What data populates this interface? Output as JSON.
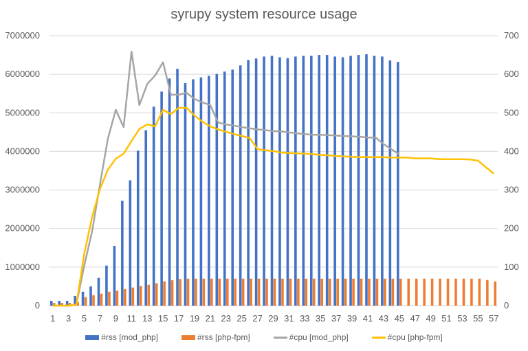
{
  "chart_data": {
    "type": "bar+line",
    "title": "syrupy system resource usage",
    "xlabel": "",
    "ylabel_left": "",
    "ylabel_right": "",
    "ylim_left": [
      0,
      7000000
    ],
    "ylim_right": [
      0,
      700
    ],
    "y_ticks_left": [
      "0",
      "1000000",
      "2000000",
      "3000000",
      "4000000",
      "5000000",
      "6000000",
      "7000000"
    ],
    "y_ticks_right": [
      "0",
      "100",
      "200",
      "300",
      "400",
      "500",
      "600",
      "700"
    ],
    "x_tick_labels": [
      "1",
      "3",
      "5",
      "7",
      "9",
      "11",
      "13",
      "15",
      "17",
      "19",
      "21",
      "23",
      "25",
      "27",
      "29",
      "31",
      "33",
      "35",
      "37",
      "39",
      "41",
      "43",
      "45",
      "47",
      "49",
      "51",
      "53",
      "55",
      "57"
    ],
    "grid": true,
    "legend_position": "bottom",
    "x": [
      1,
      2,
      3,
      4,
      5,
      6,
      7,
      8,
      9,
      10,
      11,
      12,
      13,
      14,
      15,
      16,
      17,
      18,
      19,
      20,
      21,
      22,
      23,
      24,
      25,
      26,
      27,
      28,
      29,
      30,
      31,
      32,
      33,
      34,
      35,
      36,
      37,
      38,
      39,
      40,
      41,
      42,
      43,
      44,
      45,
      46,
      47,
      48,
      49,
      50,
      51,
      52,
      53,
      54,
      55,
      56,
      57
    ],
    "series": [
      {
        "name": "#rss [mod_php]",
        "type": "bar",
        "axis": "left",
        "color": "#4472C4",
        "values": [
          125000,
          125000,
          125000,
          250000,
          360000,
          500000,
          720000,
          1040000,
          1550000,
          2720000,
          3250000,
          4020000,
          4550000,
          5160000,
          5550000,
          5890000,
          6140000,
          5770000,
          5870000,
          5920000,
          5960000,
          6010000,
          6070000,
          6120000,
          6230000,
          6370000,
          6410000,
          6460000,
          6480000,
          6440000,
          6420000,
          6460000,
          6480000,
          6480000,
          6500000,
          6500000,
          6460000,
          6440000,
          6480000,
          6500000,
          6520000,
          6480000,
          6460000,
          6360000,
          6320000,
          null,
          null,
          null,
          null,
          null,
          null,
          null,
          null,
          null,
          null,
          null,
          null
        ]
      },
      {
        "name": "#rss [php-fpm]",
        "type": "bar",
        "axis": "left",
        "color": "#ED7D31",
        "values": [
          70000,
          70000,
          70000,
          90000,
          220000,
          270000,
          310000,
          360000,
          390000,
          430000,
          470000,
          510000,
          540000,
          580000,
          630000,
          660000,
          690000,
          700000,
          700000,
          700000,
          700000,
          700000,
          700000,
          700000,
          700000,
          700000,
          700000,
          700000,
          700000,
          700000,
          700000,
          700000,
          700000,
          700000,
          700000,
          700000,
          700000,
          700000,
          700000,
          700000,
          700000,
          700000,
          700000,
          700000,
          700000,
          700000,
          700000,
          700000,
          700000,
          700000,
          700000,
          700000,
          700000,
          700000,
          700000,
          665000,
          630000
        ]
      },
      {
        "name": "#cpu [mod_php]",
        "type": "line",
        "axis": "right",
        "color": "#A5A5A5",
        "values": [
          0,
          0,
          0,
          3,
          104,
          193,
          315,
          433,
          508,
          463,
          659,
          520,
          575,
          597,
          631,
          547,
          547,
          552,
          536,
          527,
          520,
          475,
          470,
          467,
          463,
          460,
          457,
          455,
          453,
          452,
          449,
          447,
          445,
          443,
          443,
          442,
          441,
          440,
          439,
          438,
          436,
          436,
          419,
          406,
          392,
          null,
          null,
          null,
          null,
          null,
          null,
          null,
          null,
          null,
          null,
          null,
          null
        ]
      },
      {
        "name": "#cpu [php-fpm]",
        "type": "line",
        "axis": "right",
        "color": "#FFC000",
        "values": [
          0,
          0,
          0,
          3,
          135,
          230,
          303,
          353,
          381,
          394,
          427,
          458,
          470,
          465,
          508,
          497,
          513,
          513,
          493,
          477,
          465,
          457,
          451,
          445,
          440,
          435,
          406,
          403,
          401,
          397,
          396,
          395,
          394,
          393,
          391,
          390,
          388,
          387,
          386,
          385,
          385,
          385,
          385,
          384,
          384,
          384,
          382,
          382,
          382,
          380,
          380,
          380,
          380,
          379,
          376,
          359,
          342
        ]
      }
    ]
  }
}
